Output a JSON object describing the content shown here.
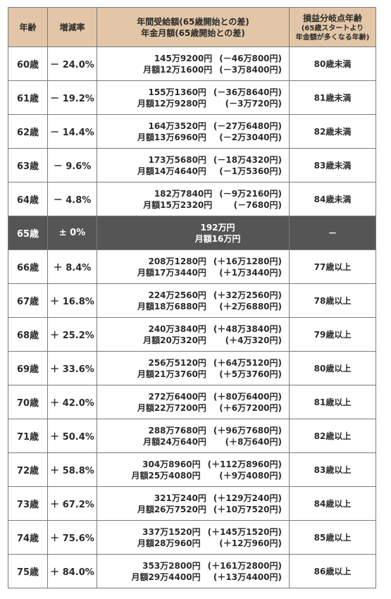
{
  "headers": {
    "age": "年齢",
    "rate": "増減率",
    "amount_line1": "年間受給額(65歳開始との差)",
    "amount_line2": "年金月額(65歳開始との差)",
    "be_line1": "損益分岐点年齢",
    "be_line2": "(65歳スタートより",
    "be_line3": "年金額が多くなる年齢)"
  },
  "rows": [
    {
      "age": "60歳",
      "rate": "－ 24.0%",
      "annual": "145万9200円",
      "annual_diff": "(－46万800円)",
      "monthly": "月額12万1600円",
      "monthly_diff": "(－3万8400円)",
      "breakeven": "80歳未満"
    },
    {
      "age": "61歳",
      "rate": "－ 19.2%",
      "annual": "155万1360円",
      "annual_diff": "(－36万8640円)",
      "monthly": "月額12万9280円",
      "monthly_diff": "(－3万720円)",
      "breakeven": "81歳未満"
    },
    {
      "age": "62歳",
      "rate": "－ 14.4%",
      "annual": "164万3520円",
      "annual_diff": "(－27万6480円)",
      "monthly": "月額13万6960円",
      "monthly_diff": "(－2万3040円)",
      "breakeven": "82歳未満"
    },
    {
      "age": "63歳",
      "rate": "－ 9.6%",
      "annual": "173万5680円",
      "annual_diff": "(－18万4320円)",
      "monthly": "月額14万4640円",
      "monthly_diff": "(－1万5360円)",
      "breakeven": "83歳未満"
    },
    {
      "age": "64歳",
      "rate": "－ 4.8%",
      "annual": "182万7840円",
      "annual_diff": "(－9万2160円)",
      "monthly": "月額15万2320円",
      "monthly_diff": "(－7680円)",
      "breakeven": "84歳未満"
    },
    {
      "age": "65歳",
      "rate": "± 0%",
      "annual": "192万円",
      "annual_diff": "",
      "monthly": "月額16万円",
      "monthly_diff": "",
      "breakeven": "－",
      "base": true
    },
    {
      "age": "66歳",
      "rate": "＋ 8.4%",
      "annual": "208万1280円",
      "annual_diff": "(＋16万1280円)",
      "monthly": "月額17万3440円",
      "monthly_diff": "(＋1万3440円)",
      "breakeven": "77歳以上"
    },
    {
      "age": "67歳",
      "rate": "＋ 16.8%",
      "annual": "224万2560円",
      "annual_diff": "(＋32万2560円)",
      "monthly": "月額18万6880円",
      "monthly_diff": "(＋2万6880円)",
      "breakeven": "78歳以上"
    },
    {
      "age": "68歳",
      "rate": "＋ 25.2%",
      "annual": "240万3840円",
      "annual_diff": "(＋48万3840円)",
      "monthly": "月額20万320円",
      "monthly_diff": "(＋4万320円)",
      "breakeven": "79歳以上"
    },
    {
      "age": "69歳",
      "rate": "＋ 33.6%",
      "annual": "256万5120円",
      "annual_diff": "(＋64万5120円)",
      "monthly": "月額21万3760円",
      "monthly_diff": "(＋5万3760円)",
      "breakeven": "80歳以上"
    },
    {
      "age": "70歳",
      "rate": "＋ 42.0%",
      "annual": "272万6400円",
      "annual_diff": "(＋80万6400円)",
      "monthly": "月額22万7200円",
      "monthly_diff": "(＋6万7200円)",
      "breakeven": "81歳以上"
    },
    {
      "age": "71歳",
      "rate": "＋ 50.4%",
      "annual": "288万7680円",
      "annual_diff": "(＋96万7680円)",
      "monthly": "月額24万640円",
      "monthly_diff": "(＋8万640円)",
      "breakeven": "82歳以上"
    },
    {
      "age": "72歳",
      "rate": "＋ 58.8%",
      "annual": "304万8960円",
      "annual_diff": "(＋112万8960円)",
      "monthly": "月額25万4080円",
      "monthly_diff": "(＋9万4080円)",
      "breakeven": "83歳以上"
    },
    {
      "age": "73歳",
      "rate": "＋ 67.2%",
      "annual": "321万240円",
      "annual_diff": "(＋129万240円)",
      "monthly": "月額26万7520円",
      "monthly_diff": "(＋10万7520円)",
      "breakeven": "84歳以上"
    },
    {
      "age": "74歳",
      "rate": "＋ 75.6%",
      "annual": "337万1520円",
      "annual_diff": "(＋145万1520円)",
      "monthly": "月額28万960円",
      "monthly_diff": "(＋12万960円)",
      "breakeven": "85歳以上"
    },
    {
      "age": "75歳",
      "rate": "＋ 84.0%",
      "annual": "353万2800円",
      "annual_diff": "(＋161万2800円)",
      "monthly": "月額29万4400円",
      "monthly_diff": "(＋13万4400円)",
      "breakeven": "86歳以上"
    }
  ],
  "colors": {
    "header_bg": "#e2c6a7",
    "base_row_bg": "#555555",
    "border": "#7a7a7a"
  }
}
